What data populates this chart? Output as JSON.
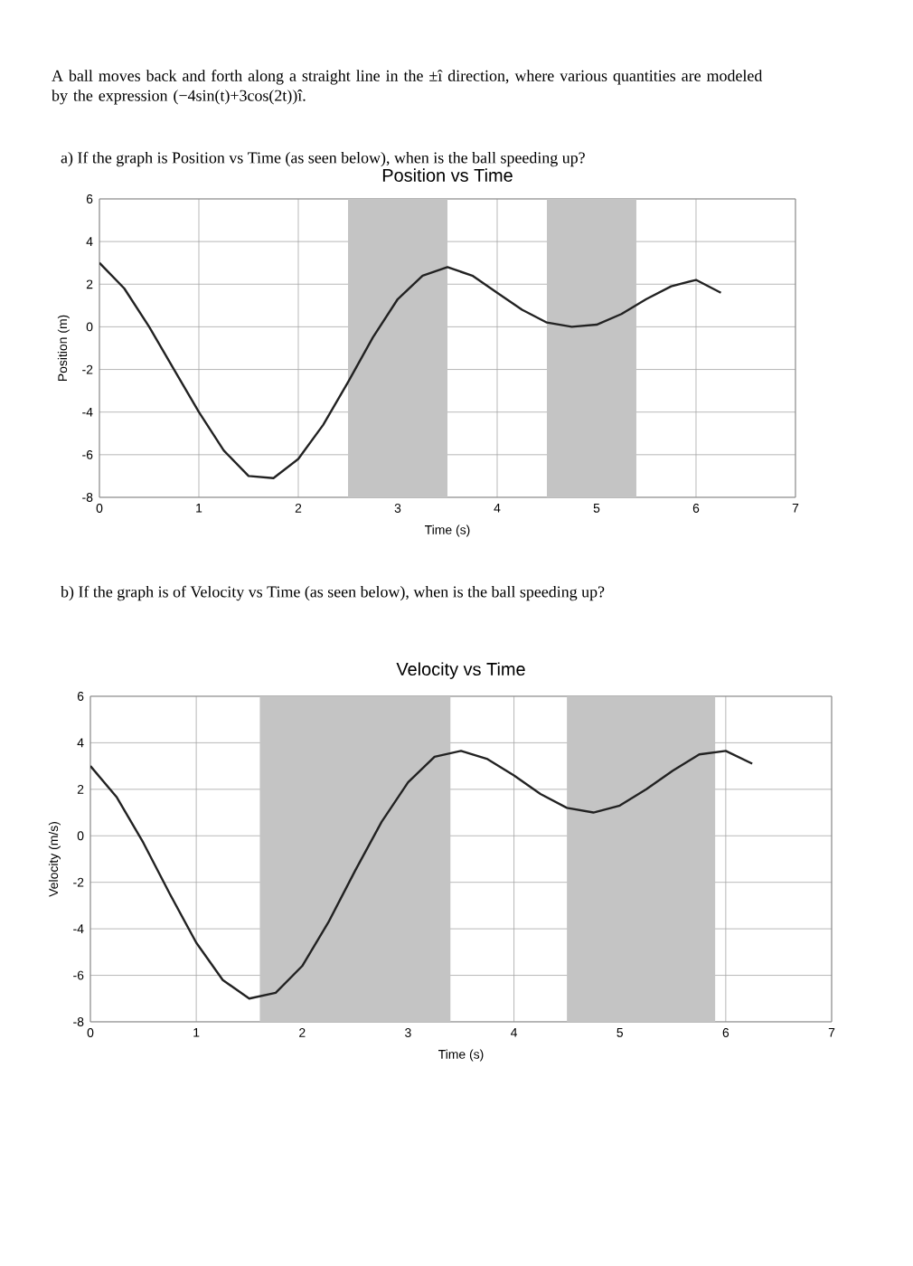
{
  "chart_data": [
    {
      "type": "line",
      "title": "Position vs Time",
      "subtitle": "a) If the graph is Position vs Time (as seen below), when is the ball speeding up?",
      "xlabel": "Time (s)",
      "ylabel": "Position (m)",
      "annotations": [
        "A ball moves back and forth along a straight line in the ±î direction, where various quantities are modeled by the expression (−4sin(t)+3cos(2t))î."
      ],
      "x": [
        0,
        0.25,
        0.5,
        0.75,
        1,
        1.25,
        1.5,
        1.75,
        2,
        2.25,
        2.5,
        2.75,
        3,
        3.25,
        3.5,
        3.75,
        4,
        4.25,
        4.5,
        4.75,
        5,
        5.25,
        5.5,
        5.75,
        6,
        6.25
      ],
      "series": [
        {
          "color": "#222222",
          "values": [
            3,
            1.8,
            0,
            -2,
            -4,
            -5.8,
            -7,
            -7.1,
            -6.2,
            -4.6,
            -2.6,
            -0.5,
            1.3,
            2.4,
            2.8,
            2.4,
            1.6,
            0.8,
            0.2,
            0,
            0.1,
            0.6,
            1.3,
            1.9,
            2.2,
            1.6
          ]
        }
      ],
      "xlim": [
        0,
        7
      ],
      "ylim": [
        -8,
        6
      ],
      "xticks": [
        0,
        1,
        2,
        3,
        4,
        5,
        6,
        7
      ],
      "yticks": [
        -8,
        -6,
        -4,
        -2,
        0,
        2,
        4,
        6
      ],
      "grid": true,
      "bands": [
        {
          "axis": "x",
          "from": 2.5,
          "to": 3.5,
          "color": "#c4c4c4"
        },
        {
          "axis": "x",
          "from": 4.5,
          "to": 5.4,
          "color": "#c4c4c4"
        }
      ]
    },
    {
      "type": "line",
      "title": "Velocity vs Time",
      "subtitle": "b) If the graph is of Velocity vs Time (as seen below), when is the ball speeding up?",
      "xlabel": "Time (s)",
      "ylabel": "Velocity (m/s)",
      "x": [
        0,
        0.25,
        0.5,
        0.75,
        1,
        1.25,
        1.5,
        1.75,
        2,
        2.25,
        2.5,
        2.75,
        3,
        3.25,
        3.5,
        3.75,
        4,
        4.25,
        4.5,
        4.75,
        5,
        5.25,
        5.5,
        5.75,
        6,
        6.25
      ],
      "series": [
        {
          "color": "#222222",
          "values": [
            3,
            1.65,
            -0.3,
            -2.5,
            -4.6,
            -6.2,
            -7,
            -6.75,
            -5.6,
            -3.7,
            -1.5,
            0.6,
            2.3,
            3.4,
            3.65,
            3.3,
            2.6,
            1.8,
            1.2,
            1,
            1.3,
            2,
            2.8,
            3.5,
            3.65,
            3.1
          ]
        }
      ],
      "xlim": [
        0,
        7
      ],
      "ylim": [
        -8,
        6
      ],
      "xticks": [
        0,
        1,
        2,
        3,
        4,
        5,
        6,
        7
      ],
      "yticks": [
        -8,
        -6,
        -4,
        -2,
        0,
        2,
        4,
        6
      ],
      "grid": true,
      "bands": [
        {
          "axis": "x",
          "from": 1.6,
          "to": 3.4,
          "color": "#c4c4c4"
        },
        {
          "axis": "x",
          "from": 4.5,
          "to": 5.9,
          "color": "#c4c4c4"
        }
      ]
    }
  ]
}
